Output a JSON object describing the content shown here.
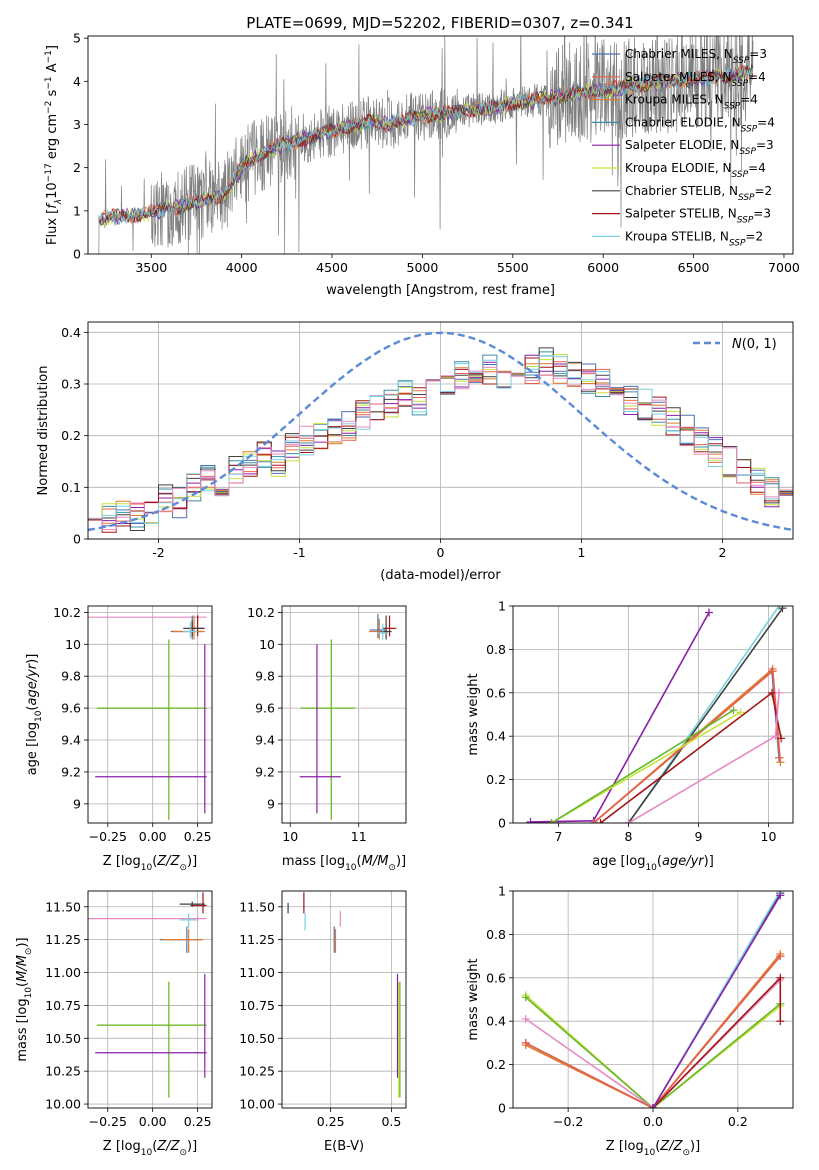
{
  "figure": {
    "title": "PLATE=0699, MJD=52202, FIBERID=0307, z=0.341"
  },
  "colors": {
    "Chabrier MILES": "#4c72b0",
    "Salpeter MILES": "#e8604c",
    "Kroupa MILES": "#e07b30",
    "Chabrier ELODIE": "#3a8fa8",
    "Salpeter ELODIE": "#8b1fa8",
    "Kroupa ELODIE": "#c6e23a",
    "Chabrier STELIB": "#404040",
    "Salpeter STELIB": "#a31515",
    "Kroupa STELIB": "#7ad0e0",
    "observed": "#808080",
    "normal": "#5b8bd6",
    "extra_pink": "#e78ac3",
    "extra_green": "#66b82a"
  },
  "chart_data": [
    {
      "type": "line",
      "id": "spectrum",
      "xlabel": "wavelength [Angstrom, rest frame]",
      "ylabel": "Flux [f_λ10^-17 erg cm^-2 s^-1 A^-1]",
      "xlim": [
        3150,
        7050
      ],
      "ylim": [
        0,
        5.05
      ],
      "xticks": [
        3500,
        4000,
        4500,
        5000,
        5500,
        6000,
        6500,
        7000
      ],
      "yticks": [
        0,
        1,
        2,
        3,
        4,
        5
      ],
      "grid": false,
      "legend_position": "top-right",
      "continuum_x": [
        3200,
        3300,
        3400,
        3500,
        3600,
        3700,
        3800,
        3900,
        4000,
        4100,
        4200,
        4300,
        4400,
        4500,
        4600,
        4700,
        4800,
        4900,
        5000,
        5100,
        5200,
        5300,
        5400,
        5500,
        5600,
        5700,
        5800,
        5900,
        6000,
        6100,
        6200,
        6300,
        6400,
        6500,
        6600,
        6700,
        6800
      ],
      "continuum_y": [
        0.8,
        0.85,
        0.9,
        0.95,
        1.05,
        1.15,
        1.25,
        1.35,
        2.0,
        2.3,
        2.5,
        2.6,
        2.75,
        2.85,
        2.95,
        3.05,
        3.0,
        3.1,
        3.2,
        3.25,
        3.3,
        3.35,
        3.4,
        3.5,
        3.55,
        3.6,
        3.7,
        3.75,
        3.8,
        3.85,
        3.9,
        3.95,
        4.0,
        4.05,
        4.1,
        4.15,
        4.2
      ],
      "series": [
        {
          "name": "Chabrier MILES, N_SSP=3"
        },
        {
          "name": "Salpeter MILES, N_SSP=4"
        },
        {
          "name": "Kroupa MILES, N_SSP=4"
        },
        {
          "name": "Chabrier ELODIE, N_SSP=4"
        },
        {
          "name": "Salpeter ELODIE, N_SSP=3"
        },
        {
          "name": "Kroupa ELODIE, N_SSP=4"
        },
        {
          "name": "Chabrier STELIB, N_SSP=2"
        },
        {
          "name": "Salpeter STELIB, N_SSP=3"
        },
        {
          "name": "Kroupa STELIB, N_SSP=2"
        }
      ]
    },
    {
      "type": "step",
      "id": "residuals",
      "xlabel": "(data-model)/error",
      "ylabel": "Normed distribution",
      "xlim": [
        -2.5,
        2.5
      ],
      "ylim": [
        0,
        0.42
      ],
      "xticks": [
        -2,
        -1,
        0,
        1,
        2
      ],
      "yticks": [
        0.0,
        0.1,
        0.2,
        0.3,
        0.4
      ],
      "grid": true,
      "legend_position": "top-right",
      "normal_label": "N(0,1)",
      "bin_width": 0.1,
      "bin_start": -2.5,
      "histogram": [
        0.05,
        0.04,
        0.05,
        0.04,
        0.06,
        0.08,
        0.07,
        0.1,
        0.12,
        0.11,
        0.13,
        0.15,
        0.16,
        0.15,
        0.18,
        0.19,
        0.2,
        0.21,
        0.22,
        0.24,
        0.25,
        0.26,
        0.28,
        0.27,
        0.3,
        0.31,
        0.32,
        0.3,
        0.33,
        0.31,
        0.32,
        0.33,
        0.34,
        0.33,
        0.32,
        0.31,
        0.3,
        0.29,
        0.27,
        0.26,
        0.25,
        0.23,
        0.21,
        0.19,
        0.17,
        0.15,
        0.13,
        0.11,
        0.09,
        0.08
      ]
    },
    {
      "type": "scatter",
      "id": "age_vs_Z",
      "xlabel": "Z [log10(Z/Z⊙)]",
      "ylabel": "age [log10(age/yr)]",
      "xlim": [
        -0.36,
        0.33
      ],
      "ylim": [
        8.88,
        10.24
      ],
      "xticks": [
        -0.25,
        0.0,
        0.25
      ],
      "xtick_labels": [
        "−0.25",
        "0.00",
        "0.25"
      ],
      "yticks": [
        9.0,
        9.2,
        9.4,
        9.6,
        9.8,
        10.0,
        10.2
      ],
      "grid": true,
      "points": [
        {
          "x": 0.09,
          "xerr": [
            0.4,
            0.21
          ],
          "y": 9.6,
          "yerr": [
            0.7,
            0.43
          ],
          "c": "Kroupa ELODIE"
        },
        {
          "x": 0.09,
          "xerr": [
            0.4,
            0.21
          ],
          "y": 9.6,
          "yerr": [
            0.7,
            0.43
          ],
          "c": "extra_green"
        },
        {
          "x": 0.29,
          "xerr": [
            0.61,
            0.01
          ],
          "y": 9.17,
          "yerr": [
            0.23,
            0.83
          ],
          "c": "Salpeter ELODIE"
        },
        {
          "x": 0.25,
          "xerr": [
            0.61,
            0.05
          ],
          "y": 10.17,
          "yerr": [
            0.02,
            0.02
          ],
          "c": "extra_pink"
        },
        {
          "x": 0.22,
          "xerr": [
            0.12,
            0.06
          ],
          "y": 10.08,
          "yerr": [
            0.05,
            0.1
          ],
          "c": "Chabrier MILES"
        },
        {
          "x": 0.23,
          "xerr": [
            0.12,
            0.06
          ],
          "y": 10.08,
          "yerr": [
            0.05,
            0.1
          ],
          "c": "Kroupa MILES"
        },
        {
          "x": 0.25,
          "xerr": [
            0.05,
            0.04
          ],
          "y": 10.1,
          "yerr": [
            0.05,
            0.08
          ],
          "c": "Salpeter STELIB"
        },
        {
          "x": 0.22,
          "xerr": [
            0.05,
            0.06
          ],
          "y": 10.1,
          "yerr": [
            0.05,
            0.05
          ],
          "c": "Chabrier STELIB"
        },
        {
          "x": 0.21,
          "xerr": [
            0.04,
            0.04
          ],
          "y": 10.08,
          "yerr": [
            0.04,
            0.06
          ],
          "c": "Kroupa STELIB"
        }
      ]
    },
    {
      "type": "scatter",
      "id": "age_vs_mass",
      "xlabel": "mass [log10(M/M⊙)]",
      "ylabel": "",
      "xlim": [
        9.88,
        11.69
      ],
      "ylim": [
        8.88,
        10.24
      ],
      "xticks": [
        10,
        11
      ],
      "yticks": [
        9.0,
        9.2,
        9.4,
        9.6,
        9.8,
        10.0,
        10.2
      ],
      "grid": true,
      "points": [
        {
          "x": 10.6,
          "xerr": [
            0.45,
            0.35
          ],
          "y": 9.6,
          "yerr": [
            0.7,
            0.43
          ],
          "c": "Kroupa ELODIE"
        },
        {
          "x": 10.6,
          "xerr": [
            0.45,
            0.35
          ],
          "y": 9.6,
          "yerr": [
            0.7,
            0.43
          ],
          "c": "extra_green"
        },
        {
          "x": 10.39,
          "xerr": [
            0.25,
            0.35
          ],
          "y": 9.17,
          "yerr": [
            0.23,
            0.83
          ],
          "c": "Salpeter ELODIE"
        },
        {
          "x": 11.3,
          "xerr": [
            0.15,
            0.12
          ],
          "y": 10.08,
          "yerr": [
            0.05,
            0.08
          ],
          "c": "Kroupa MILES"
        },
        {
          "x": 11.28,
          "xerr": [
            0.12,
            0.12
          ],
          "y": 10.09,
          "yerr": [
            0.05,
            0.1
          ],
          "c": "Chabrier MILES"
        },
        {
          "x": 11.45,
          "xerr": [
            0.1,
            0.1
          ],
          "y": 10.1,
          "yerr": [
            0.05,
            0.08
          ],
          "c": "Salpeter STELIB"
        },
        {
          "x": 11.4,
          "xerr": [
            0.08,
            0.08
          ],
          "y": 10.08,
          "yerr": [
            0.05,
            0.1
          ],
          "c": "Chabrier STELIB"
        },
        {
          "x": 11.35,
          "xerr": [
            0.08,
            0.08
          ],
          "y": 10.07,
          "yerr": [
            0.04,
            0.06
          ],
          "c": "Kroupa STELIB"
        }
      ]
    },
    {
      "type": "line",
      "id": "massweight_vs_age",
      "xlabel": "age [log10(age/yr)]",
      "ylabel": "mass weight",
      "xlim": [
        6.35,
        10.35
      ],
      "ylim": [
        0.0,
        1.0
      ],
      "xticks": [
        7,
        8,
        9,
        10
      ],
      "yticks": [
        0.0,
        0.2,
        0.4,
        0.6,
        0.8,
        1.0
      ],
      "grid": true,
      "series": [
        {
          "c": "Salpeter ELODIE",
          "x": [
            6.6,
            7.5,
            9.15
          ],
          "y": [
            0.005,
            0.01,
            0.97
          ]
        },
        {
          "c": "Kroupa STELIB",
          "x": [
            8.0,
            10.15
          ],
          "y": [
            0.0,
            1.0
          ]
        },
        {
          "c": "Chabrier STELIB",
          "x": [
            8.0,
            10.2
          ],
          "y": [
            0.0,
            0.99
          ]
        },
        {
          "c": "Chabrier MILES",
          "x": [
            7.5,
            10.05,
            10.15
          ],
          "y": [
            0.0,
            0.7,
            0.3
          ]
        },
        {
          "c": "Kroupa MILES",
          "x": [
            7.5,
            10.06,
            10.17
          ],
          "y": [
            0.0,
            0.71,
            0.28
          ]
        },
        {
          "c": "Salpeter MILES",
          "x": [
            7.5,
            10.06,
            10.16
          ],
          "y": [
            0.0,
            0.7,
            0.3
          ]
        },
        {
          "c": "Salpeter STELIB",
          "x": [
            7.6,
            10.05,
            10.18
          ],
          "y": [
            0.0,
            0.6,
            0.39
          ]
        },
        {
          "c": "extra_pink",
          "x": [
            8.0,
            10.1,
            10.15
          ],
          "y": [
            0.0,
            0.4,
            0.6
          ]
        },
        {
          "c": "Kroupa ELODIE",
          "x": [
            6.9,
            9.6
          ],
          "y": [
            0.0,
            0.51
          ]
        },
        {
          "c": "extra_green",
          "x": [
            6.9,
            9.5
          ],
          "y": [
            0.0,
            0.52
          ]
        }
      ]
    },
    {
      "type": "scatter",
      "id": "mass_vs_Z",
      "xlabel": "Z [log10(Z/Z⊙)]",
      "ylabel": "mass [log10(M/M⊙)]",
      "xlim": [
        -0.36,
        0.33
      ],
      "ylim": [
        9.97,
        11.62
      ],
      "xticks": [
        -0.25,
        0.0,
        0.25
      ],
      "xtick_labels": [
        "−0.25",
        "0.00",
        "0.25"
      ],
      "yticks": [
        10.0,
        10.25,
        10.5,
        10.75,
        11.0,
        11.25,
        11.5
      ],
      "ytick_labels": [
        "10.00",
        "10.25",
        "10.50",
        "10.75",
        "11.00",
        "11.25",
        "11.50"
      ],
      "grid": true,
      "points": [
        {
          "x": 0.09,
          "xerr": [
            0.4,
            0.21
          ],
          "y": 10.6,
          "yerr": [
            0.55,
            0.33
          ],
          "c": "Kroupa ELODIE"
        },
        {
          "x": 0.09,
          "xerr": [
            0.4,
            0.21
          ],
          "y": 10.6,
          "yerr": [
            0.55,
            0.33
          ],
          "c": "extra_green"
        },
        {
          "x": 0.29,
          "xerr": [
            0.61,
            0.01
          ],
          "y": 10.39,
          "yerr": [
            0.19,
            0.6
          ],
          "c": "Salpeter ELODIE"
        },
        {
          "x": 0.25,
          "xerr": [
            0.61,
            0.05
          ],
          "y": 11.41,
          "yerr": [
            0.02,
            0.02
          ],
          "c": "extra_pink"
        },
        {
          "x": 0.19,
          "xerr": [
            0.15,
            0.08
          ],
          "y": 11.25,
          "yerr": [
            0.1,
            0.1
          ],
          "c": "Chabrier MILES"
        },
        {
          "x": 0.2,
          "xerr": [
            0.15,
            0.08
          ],
          "y": 11.25,
          "yerr": [
            0.1,
            0.08
          ],
          "c": "Kroupa MILES"
        },
        {
          "x": 0.28,
          "xerr": [
            0.07,
            0.02
          ],
          "y": 11.51,
          "yerr": [
            0.06,
            0.1
          ],
          "c": "Salpeter STELIB"
        },
        {
          "x": 0.22,
          "xerr": [
            0.07,
            0.07
          ],
          "y": 11.52,
          "yerr": [
            0.02,
            0.02
          ],
          "c": "Chabrier STELIB"
        },
        {
          "x": 0.2,
          "xerr": [
            0.05,
            0.05
          ],
          "y": 11.4,
          "yerr": [
            0.06,
            0.05
          ],
          "c": "Kroupa STELIB"
        }
      ]
    },
    {
      "type": "scatter",
      "id": "mass_vs_ebv",
      "xlabel": "E(B-V)",
      "ylabel": "",
      "xlim": [
        0.05,
        0.56
      ],
      "ylim": [
        9.97,
        11.62
      ],
      "xticks": [
        0.25,
        0.5
      ],
      "yticks": [
        10.0,
        10.25,
        10.5,
        10.75,
        11.0,
        11.25,
        11.5
      ],
      "ytick_labels": [
        "10.00",
        "10.25",
        "10.50",
        "10.75",
        "11.00",
        "11.25",
        "11.50"
      ],
      "grid": true,
      "points": [
        {
          "x": 0.53,
          "xerr": [
            0.0,
            0.0
          ],
          "y": 10.6,
          "yerr": [
            0.55,
            0.33
          ],
          "c": "Kroupa ELODIE"
        },
        {
          "x": 0.535,
          "xerr": [
            0.0,
            0.0
          ],
          "y": 10.6,
          "yerr": [
            0.55,
            0.33
          ],
          "c": "extra_green"
        },
        {
          "x": 0.525,
          "xerr": [
            0.0,
            0.0
          ],
          "y": 10.39,
          "yerr": [
            0.19,
            0.6
          ],
          "c": "Salpeter ELODIE"
        },
        {
          "x": 0.29,
          "xerr": [
            0.0,
            0.0
          ],
          "y": 11.41,
          "yerr": [
            0.06,
            0.06
          ],
          "c": "extra_pink"
        },
        {
          "x": 0.265,
          "xerr": [
            0.0,
            0.0
          ],
          "y": 11.25,
          "yerr": [
            0.1,
            0.1
          ],
          "c": "Chabrier MILES"
        },
        {
          "x": 0.27,
          "xerr": [
            0.0,
            0.0
          ],
          "y": 11.25,
          "yerr": [
            0.1,
            0.08
          ],
          "c": "Kroupa MILES"
        },
        {
          "x": 0.14,
          "xerr": [
            0.0,
            0.0
          ],
          "y": 11.51,
          "yerr": [
            0.06,
            0.1
          ],
          "c": "Salpeter STELIB"
        },
        {
          "x": 0.075,
          "xerr": [
            0.0,
            0.0
          ],
          "y": 11.5,
          "yerr": [
            0.05,
            0.03
          ],
          "c": "Chabrier STELIB"
        },
        {
          "x": 0.145,
          "xerr": [
            0.0,
            0.0
          ],
          "y": 11.4,
          "yerr": [
            0.08,
            0.05
          ],
          "c": "Kroupa STELIB"
        }
      ]
    },
    {
      "type": "line",
      "id": "massweight_vs_Z",
      "xlabel": "Z [log10(Z/Z⊙)]",
      "ylabel": "mass weight",
      "xlim": [
        -0.33,
        0.33
      ],
      "ylim": [
        0.0,
        1.0
      ],
      "xticks": [
        -0.2,
        0.0,
        0.2
      ],
      "xtick_labels": [
        "−0.2",
        "0.0",
        "0.2"
      ],
      "yticks": [
        0.0,
        0.2,
        0.4,
        0.6,
        0.8,
        1.0
      ],
      "grid": true,
      "series": [
        {
          "c": "Kroupa ELODIE",
          "x": [
            -0.3,
            0.0,
            0.3
          ],
          "y": [
            0.52,
            0.0,
            0.47
          ]
        },
        {
          "c": "extra_green",
          "x": [
            -0.3,
            0.0,
            0.3
          ],
          "y": [
            0.51,
            0.0,
            0.48
          ]
        },
        {
          "c": "extra_pink",
          "x": [
            -0.3,
            0.0,
            0.3
          ],
          "y": [
            0.41,
            0.0,
            0.59
          ]
        },
        {
          "c": "Chabrier MILES",
          "x": [
            -0.3,
            0.0,
            0.3
          ],
          "y": [
            0.3,
            0.0,
            0.7
          ]
        },
        {
          "c": "Kroupa MILES",
          "x": [
            -0.3,
            0.0,
            0.3
          ],
          "y": [
            0.29,
            0.0,
            0.71
          ]
        },
        {
          "c": "Salpeter MILES",
          "x": [
            -0.3,
            0.0,
            0.3
          ],
          "y": [
            0.3,
            0.0,
            0.7
          ]
        },
        {
          "c": "Salpeter STELIB",
          "x": [
            0.0,
            0.3,
            0.3
          ],
          "y": [
            0.0,
            0.6,
            0.4
          ]
        },
        {
          "c": "Chabrier STELIB",
          "x": [
            0.0,
            0.3
          ],
          "y": [
            0.0,
            0.99
          ]
        },
        {
          "c": "Kroupa STELIB",
          "x": [
            0.0,
            0.3
          ],
          "y": [
            0.0,
            1.0
          ]
        },
        {
          "c": "Salpeter ELODIE",
          "x": [
            0.0,
            0.3
          ],
          "y": [
            0.0,
            0.98
          ]
        }
      ]
    }
  ]
}
